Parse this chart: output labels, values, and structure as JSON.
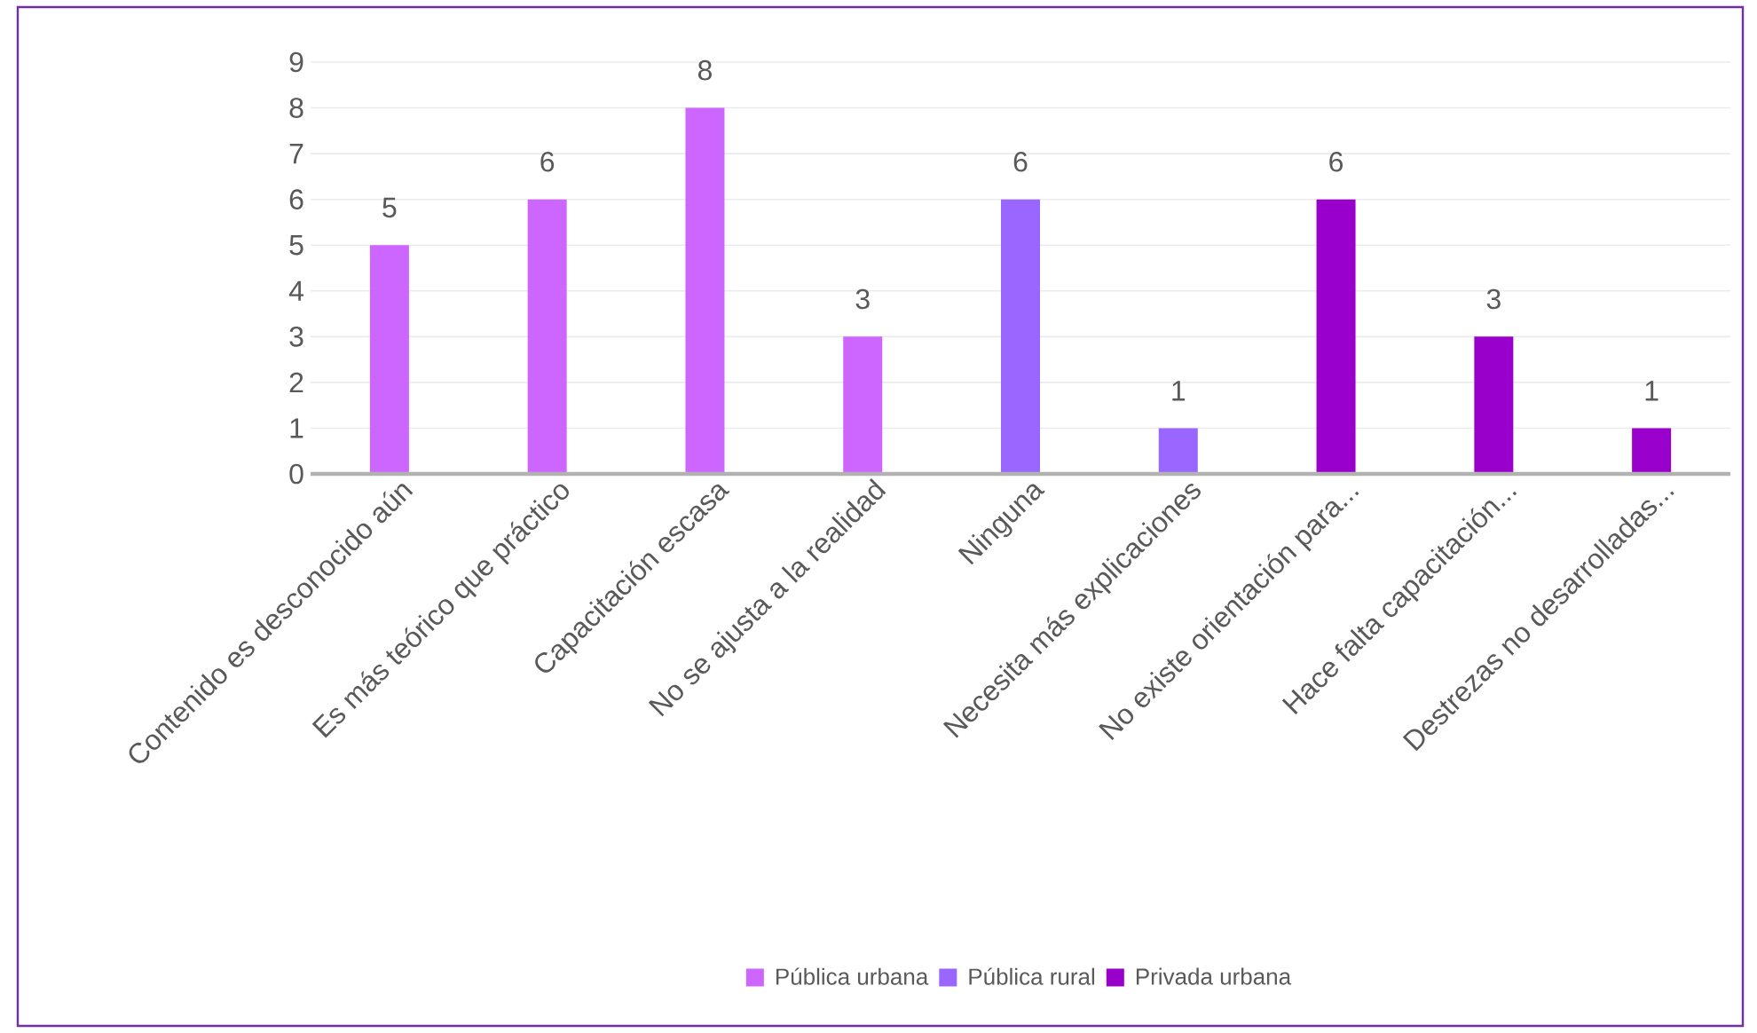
{
  "chart_data": {
    "type": "bar",
    "categories": [
      "Contenido es desconocido aún",
      "Es más teórico que práctico",
      "Capacitación escasa",
      "No se ajusta a la realidad",
      "Ninguna",
      "Necesita más explicaciones",
      "No existe orientación para...",
      "Hace falta capacitación...",
      "Destrezas no desarrolladas..."
    ],
    "series": [
      {
        "name": "Pública urbana",
        "color": "#cc66ff",
        "values": [
          5,
          6,
          8,
          3,
          null,
          null,
          null,
          null,
          null
        ]
      },
      {
        "name": "Pública rural",
        "color": "#9966ff",
        "values": [
          null,
          null,
          null,
          null,
          6,
          1,
          null,
          null,
          null
        ]
      },
      {
        "name": "Privada urbana",
        "color": "#9900cc",
        "values": [
          null,
          null,
          null,
          null,
          null,
          null,
          6,
          3,
          1
        ]
      }
    ],
    "ylim": [
      0,
      9
    ],
    "yticks": [
      0,
      1,
      2,
      3,
      4,
      5,
      6,
      7,
      8,
      9
    ],
    "grid": "y",
    "legend": "bottom",
    "data_labels": true
  }
}
